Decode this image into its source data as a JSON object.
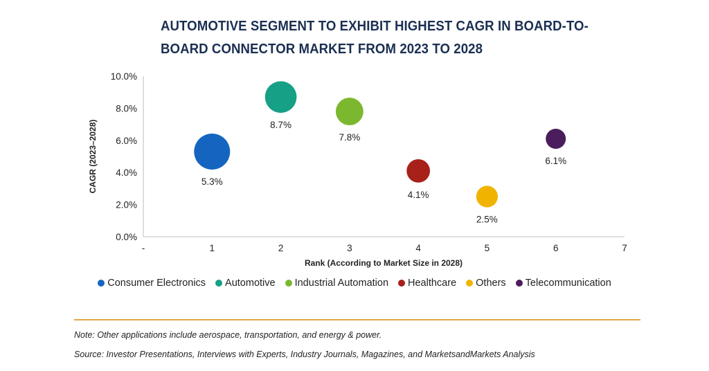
{
  "chart_data": {
    "type": "bubble",
    "title": "AUTOMOTIVE SEGMENT TO EXHIBIT HIGHEST CAGR IN BOARD-TO-BOARD CONNECTOR MARKET FROM 2023 TO 2028",
    "xlabel": "Rank (According to Market Size in 2028)",
    "ylabel": "CAGR (2023–2028)",
    "x_ticks": [
      "-",
      "1",
      "2",
      "3",
      "4",
      "5",
      "6",
      "7"
    ],
    "xlim": [
      0,
      7
    ],
    "y_ticks": [
      "0.0%",
      "2.0%",
      "4.0%",
      "6.0%",
      "8.0%",
      "10.0%"
    ],
    "ylim": [
      0,
      10
    ],
    "grid": false,
    "legend_position": "bottom",
    "series": [
      {
        "name": "Consumer Electronics",
        "x": 1,
        "y": 5.3,
        "label": "5.3%",
        "size": 1.0,
        "color": "#1565c0"
      },
      {
        "name": "Automotive",
        "x": 2,
        "y": 8.7,
        "label": "8.7%",
        "size": 0.8,
        "color": "#16a085"
      },
      {
        "name": "Industrial Automation",
        "x": 3,
        "y": 7.8,
        "label": "7.8%",
        "size": 0.62,
        "color": "#7cb82f"
      },
      {
        "name": "Healthcare",
        "x": 4,
        "y": 4.1,
        "label": "4.1%",
        "size": 0.43,
        "color": "#a8201a"
      },
      {
        "name": "Others",
        "x": 5,
        "y": 2.5,
        "label": "2.5%",
        "size": 0.35,
        "color": "#f0b400"
      },
      {
        "name": "Telecommunication",
        "x": 6,
        "y": 6.1,
        "label": "6.1%",
        "size": 0.28,
        "color": "#4b1d5c"
      }
    ]
  },
  "note": "Note: Other applications include aerospace, transportation, and energy & power.",
  "source": "Source: Investor Presentations, Interviews with Experts, Industry Journals, Magazines, and MarketsandMarkets Analysis",
  "colors": {
    "title": "#1b2f52",
    "divider": "#e0a944"
  }
}
